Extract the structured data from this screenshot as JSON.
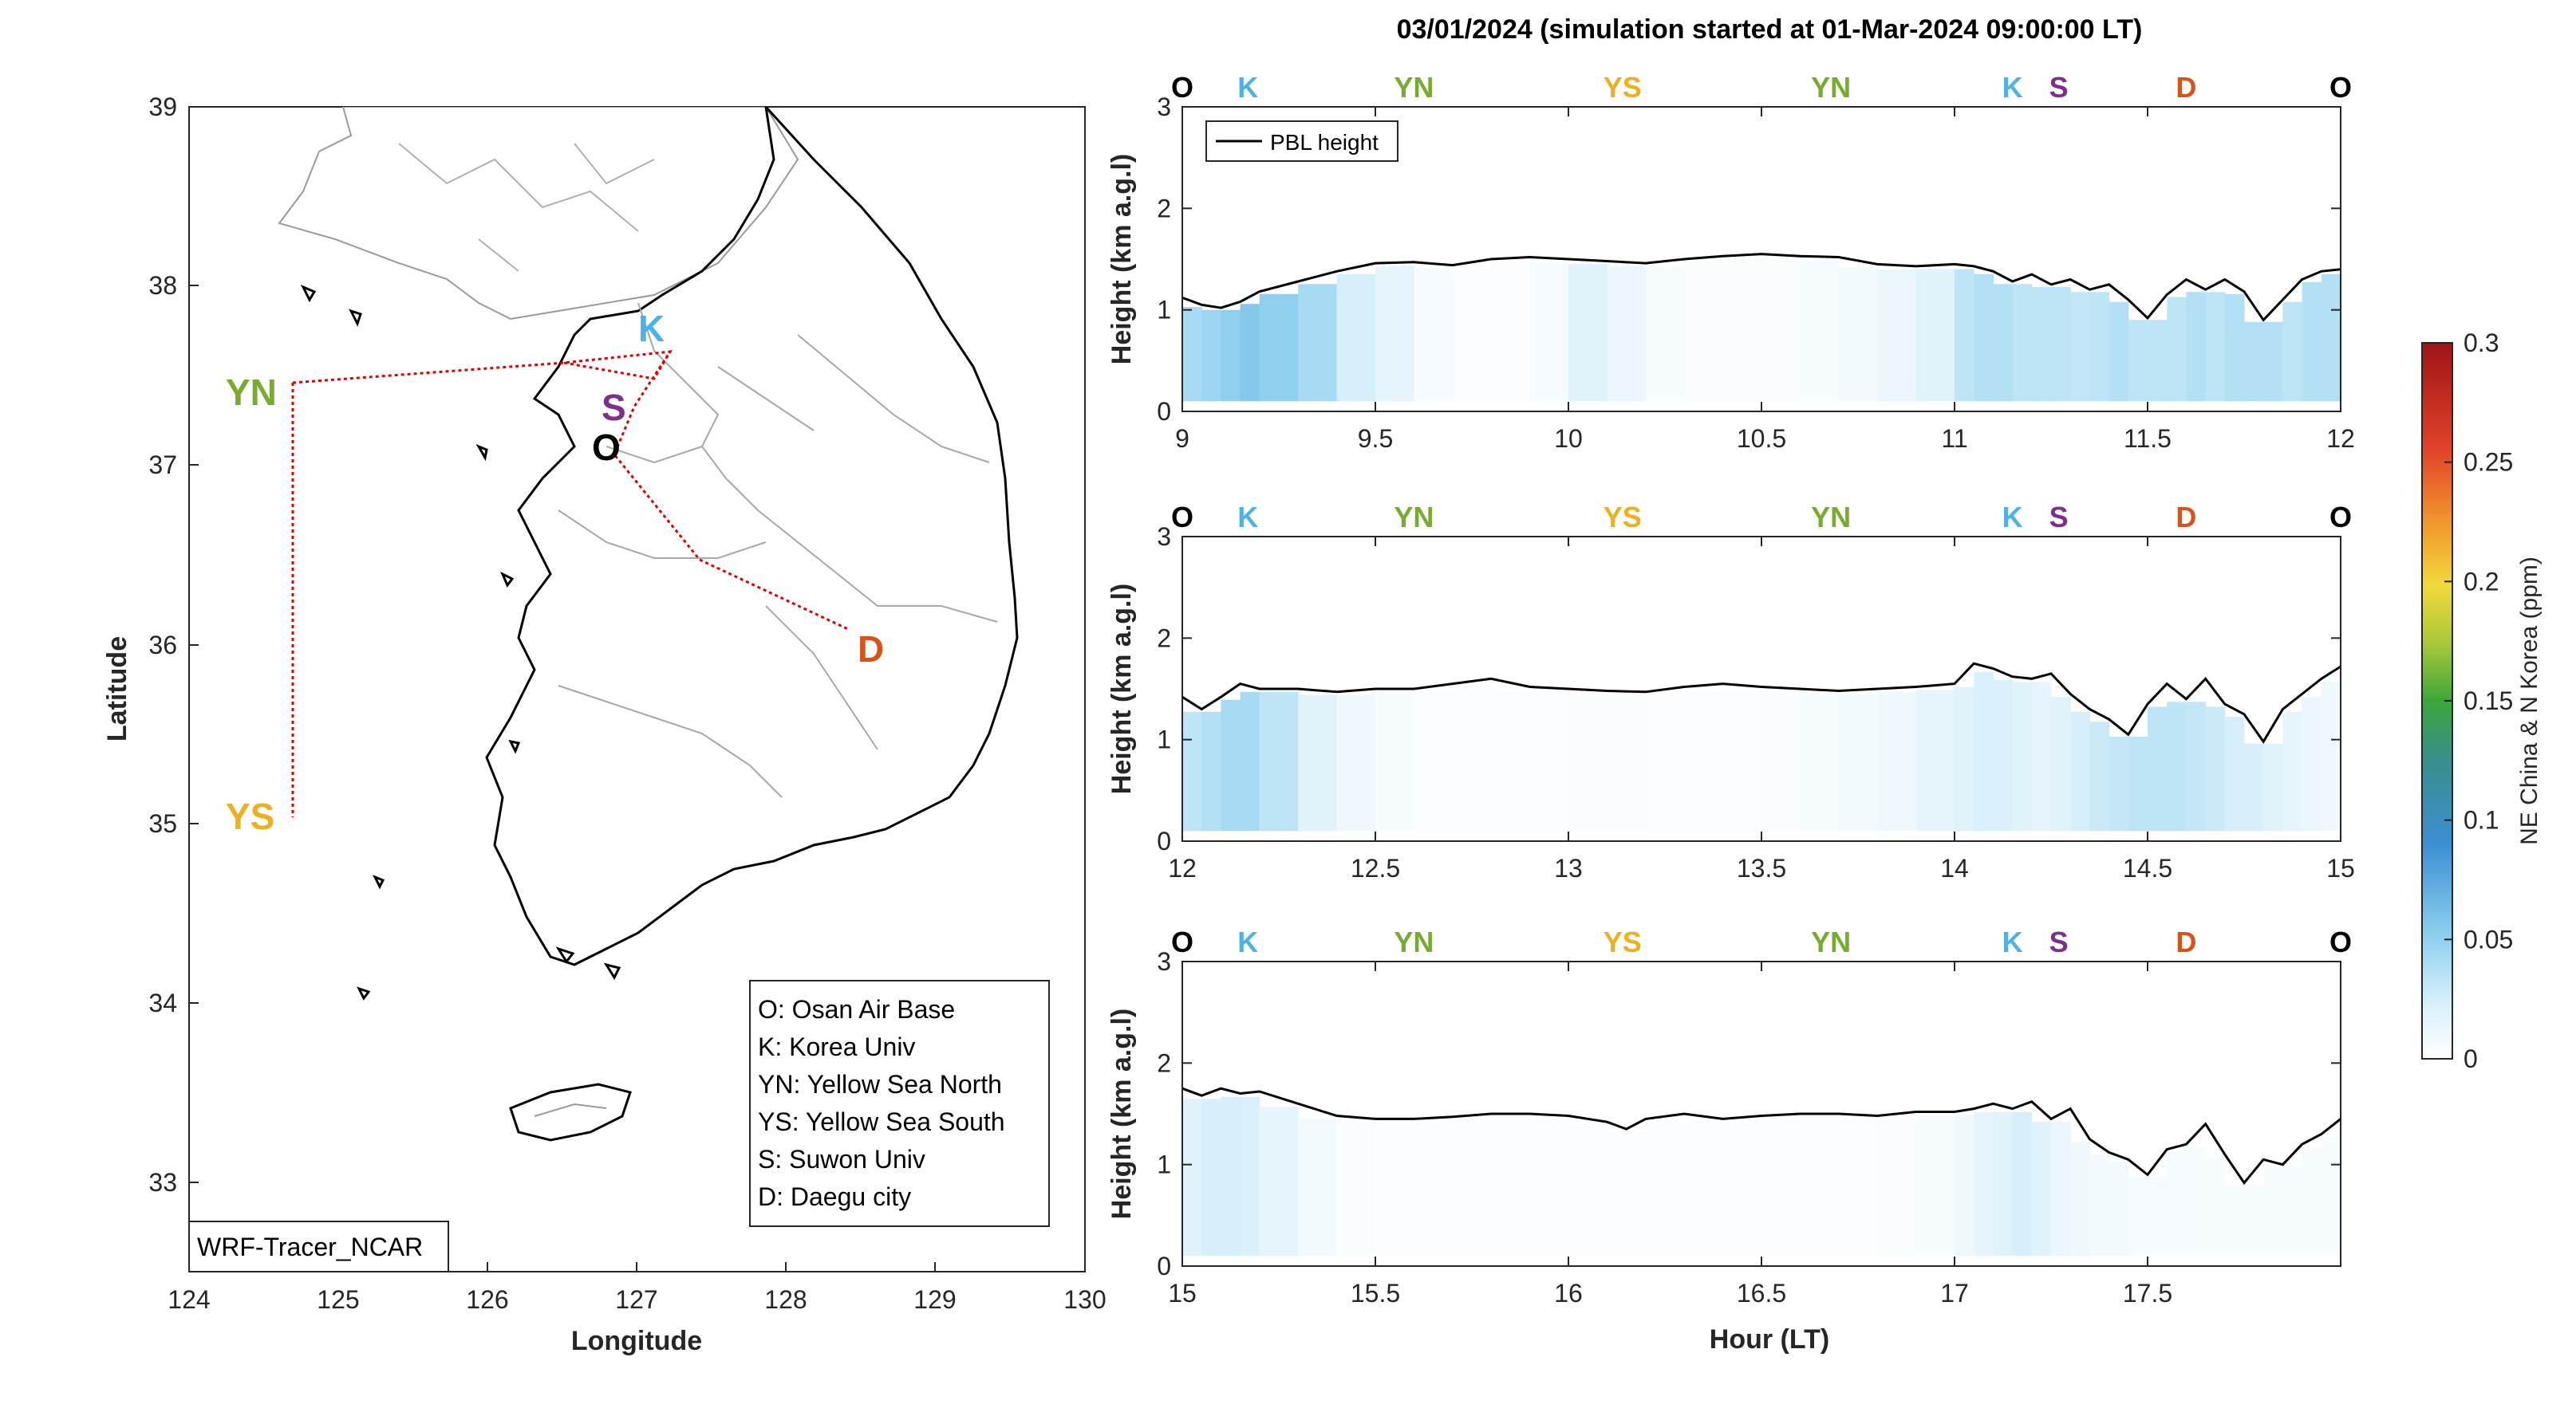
{
  "colors": {
    "O": "#000000",
    "K": "#4db3e6",
    "YN": "#77ac30",
    "YS": "#edb120",
    "S": "#7e2f8e",
    "D": "#d95319",
    "track": "#e00000",
    "pbl": "#000000"
  },
  "map": {
    "xlabel": "Longitude",
    "ylabel": "Latitude",
    "xticks": [
      "124",
      "125",
      "126",
      "127",
      "128",
      "129",
      "130"
    ],
    "yticks": [
      "39",
      "38",
      "37",
      "36",
      "35",
      "34",
      "33"
    ],
    "xlim": [
      124,
      130
    ],
    "ylim": [
      32.5,
      39
    ],
    "labels": {
      "O": "O",
      "K": "K",
      "YN": "YN",
      "YS": "YS",
      "S": "S",
      "D": "D"
    },
    "legend": [
      "O: Osan Air Base",
      "K: Korea Univ",
      "YN: Yellow Sea North",
      "YS: Yellow Sea South",
      "S: Suwon Univ",
      "D: Daegu city"
    ],
    "model_label": "WRF-Tracer_NCAR"
  },
  "title": "03/01/2024 (simulation started at 01-Mar-2024 09:00:00 LT)",
  "xlabel": "Hour (LT)",
  "colorbar": {
    "label": "NE China & N Korea (ppm)",
    "ticks": [
      "0",
      "0.05",
      "0.1",
      "0.15",
      "0.2",
      "0.25",
      "0.3"
    ],
    "range": [
      0,
      0.3
    ]
  },
  "chart_data": [
    {
      "type": "line",
      "ylabel": "Height (km a.g.l)",
      "legend": "PBL height",
      "xlim": [
        9,
        12
      ],
      "ylim": [
        0,
        3
      ],
      "xticks": [
        "9",
        "9.5",
        "10",
        "10.5",
        "11",
        "11.5",
        "12"
      ],
      "yticks": [
        "0",
        "1",
        "2",
        "3"
      ],
      "site_markers": [
        {
          "label": "O",
          "x": 9.0
        },
        {
          "label": "K",
          "x": 9.17
        },
        {
          "label": "YN",
          "x": 9.6
        },
        {
          "label": "YS",
          "x": 10.14
        },
        {
          "label": "YN",
          "x": 10.68
        },
        {
          "label": "K",
          "x": 11.15
        },
        {
          "label": "S",
          "x": 11.27
        },
        {
          "label": "D",
          "x": 11.6
        },
        {
          "label": "O",
          "x": 12.0
        }
      ],
      "x": [
        9.0,
        9.05,
        9.1,
        9.15,
        9.2,
        9.3,
        9.4,
        9.5,
        9.6,
        9.7,
        9.8,
        9.9,
        10.0,
        10.1,
        10.2,
        10.3,
        10.4,
        10.5,
        10.6,
        10.7,
        10.8,
        10.9,
        11.0,
        11.05,
        11.1,
        11.15,
        11.2,
        11.25,
        11.3,
        11.35,
        11.4,
        11.45,
        11.5,
        11.55,
        11.6,
        11.65,
        11.7,
        11.75,
        11.8,
        11.85,
        11.9,
        11.95,
        12.0
      ],
      "pbl": [
        1.12,
        1.05,
        1.02,
        1.08,
        1.18,
        1.28,
        1.38,
        1.46,
        1.47,
        1.44,
        1.5,
        1.52,
        1.5,
        1.48,
        1.46,
        1.5,
        1.53,
        1.55,
        1.53,
        1.52,
        1.45,
        1.43,
        1.45,
        1.43,
        1.38,
        1.28,
        1.35,
        1.25,
        1.3,
        1.2,
        1.25,
        1.1,
        0.92,
        1.15,
        1.3,
        1.2,
        1.3,
        1.18,
        0.9,
        1.1,
        1.3,
        1.38,
        1.4
      ],
      "tracer": [
        0.04,
        0.045,
        0.05,
        0.055,
        0.05,
        0.04,
        0.02,
        0.012,
        0.005,
        0.002,
        0.002,
        0.005,
        0.015,
        0.01,
        0.004,
        0.003,
        0.003,
        0.003,
        0.004,
        0.006,
        0.01,
        0.015,
        0.03,
        0.035,
        0.035,
        0.03,
        0.03,
        0.03,
        0.028,
        0.03,
        0.035,
        0.03,
        0.03,
        0.03,
        0.035,
        0.03,
        0.035,
        0.035,
        0.035,
        0.03,
        0.035,
        0.035,
        0.03
      ]
    },
    {
      "type": "line",
      "ylabel": "Height (km a.g.l)",
      "legend": "",
      "xlim": [
        12,
        15
      ],
      "ylim": [
        0,
        3
      ],
      "xticks": [
        "12",
        "12.5",
        "13",
        "13.5",
        "14",
        "14.5",
        "15"
      ],
      "yticks": [
        "0",
        "1",
        "2",
        "3"
      ],
      "site_markers": [
        {
          "label": "O",
          "x": 12.0
        },
        {
          "label": "K",
          "x": 12.17
        },
        {
          "label": "YN",
          "x": 12.6
        },
        {
          "label": "YS",
          "x": 13.14
        },
        {
          "label": "YN",
          "x": 13.68
        },
        {
          "label": "K",
          "x": 14.15
        },
        {
          "label": "S",
          "x": 14.27
        },
        {
          "label": "D",
          "x": 14.6
        },
        {
          "label": "O",
          "x": 15.0
        }
      ],
      "x": [
        12.0,
        12.05,
        12.1,
        12.15,
        12.2,
        12.3,
        12.4,
        12.5,
        12.6,
        12.7,
        12.8,
        12.9,
        13.0,
        13.1,
        13.2,
        13.3,
        13.4,
        13.5,
        13.6,
        13.7,
        13.8,
        13.9,
        14.0,
        14.05,
        14.1,
        14.15,
        14.2,
        14.25,
        14.3,
        14.35,
        14.4,
        14.45,
        14.5,
        14.55,
        14.6,
        14.65,
        14.7,
        14.75,
        14.8,
        14.85,
        14.9,
        14.95,
        15.0
      ],
      "pbl": [
        1.42,
        1.3,
        1.42,
        1.55,
        1.5,
        1.5,
        1.47,
        1.5,
        1.5,
        1.55,
        1.6,
        1.52,
        1.5,
        1.48,
        1.47,
        1.52,
        1.55,
        1.52,
        1.5,
        1.48,
        1.5,
        1.52,
        1.55,
        1.75,
        1.7,
        1.62,
        1.6,
        1.65,
        1.45,
        1.3,
        1.2,
        1.05,
        1.35,
        1.55,
        1.4,
        1.6,
        1.35,
        1.25,
        0.98,
        1.3,
        1.45,
        1.6,
        1.72
      ],
      "tracer": [
        0.03,
        0.035,
        0.04,
        0.04,
        0.03,
        0.015,
        0.008,
        0.004,
        0.002,
        0.002,
        0.002,
        0.002,
        0.003,
        0.003,
        0.002,
        0.002,
        0.002,
        0.003,
        0.004,
        0.006,
        0.008,
        0.012,
        0.015,
        0.018,
        0.018,
        0.015,
        0.012,
        0.015,
        0.02,
        0.025,
        0.028,
        0.03,
        0.03,
        0.03,
        0.028,
        0.025,
        0.02,
        0.02,
        0.015,
        0.012,
        0.01,
        0.008,
        0.006
      ]
    },
    {
      "type": "line",
      "ylabel": "Height (km a.g.l)",
      "legend": "",
      "xlim": [
        15,
        18
      ],
      "ylim": [
        0,
        3
      ],
      "xticks": [
        "15",
        "15.5",
        "16",
        "16.5",
        "17",
        "17.5"
      ],
      "yticks": [
        "0",
        "1",
        "2",
        "3"
      ],
      "site_markers": [
        {
          "label": "O",
          "x": 15.0
        },
        {
          "label": "K",
          "x": 15.17
        },
        {
          "label": "YN",
          "x": 15.6
        },
        {
          "label": "YS",
          "x": 16.14
        },
        {
          "label": "YN",
          "x": 16.68
        },
        {
          "label": "K",
          "x": 17.15
        },
        {
          "label": "S",
          "x": 17.27
        },
        {
          "label": "D",
          "x": 17.6
        },
        {
          "label": "O",
          "x": 18.0
        }
      ],
      "x": [
        15.0,
        15.05,
        15.1,
        15.15,
        15.2,
        15.3,
        15.4,
        15.5,
        15.6,
        15.7,
        15.8,
        15.9,
        16.0,
        16.1,
        16.15,
        16.2,
        16.3,
        16.4,
        16.5,
        16.6,
        16.7,
        16.8,
        16.9,
        17.0,
        17.05,
        17.1,
        17.15,
        17.2,
        17.25,
        17.3,
        17.35,
        17.4,
        17.45,
        17.5,
        17.55,
        17.6,
        17.65,
        17.7,
        17.75,
        17.8,
        17.85,
        17.9,
        17.95,
        18.0
      ],
      "pbl": [
        1.75,
        1.68,
        1.75,
        1.7,
        1.72,
        1.6,
        1.48,
        1.45,
        1.45,
        1.47,
        1.5,
        1.5,
        1.48,
        1.42,
        1.35,
        1.45,
        1.5,
        1.45,
        1.48,
        1.5,
        1.5,
        1.48,
        1.52,
        1.52,
        1.55,
        1.6,
        1.55,
        1.62,
        1.45,
        1.55,
        1.25,
        1.12,
        1.05,
        0.9,
        1.15,
        1.2,
        1.4,
        1.1,
        0.82,
        1.05,
        1.0,
        1.2,
        1.3,
        1.45
      ],
      "tracer": [
        0.015,
        0.02,
        0.02,
        0.018,
        0.012,
        0.006,
        0.003,
        0.002,
        0.002,
        0.002,
        0.002,
        0.002,
        0.002,
        0.002,
        0.002,
        0.002,
        0.002,
        0.002,
        0.002,
        0.002,
        0.002,
        0.003,
        0.004,
        0.008,
        0.012,
        0.015,
        0.02,
        0.015,
        0.01,
        0.008,
        0.006,
        0.006,
        0.005,
        0.005,
        0.005,
        0.004,
        0.004,
        0.004,
        0.004,
        0.004,
        0.004,
        0.004,
        0.004,
        0.004
      ]
    }
  ]
}
